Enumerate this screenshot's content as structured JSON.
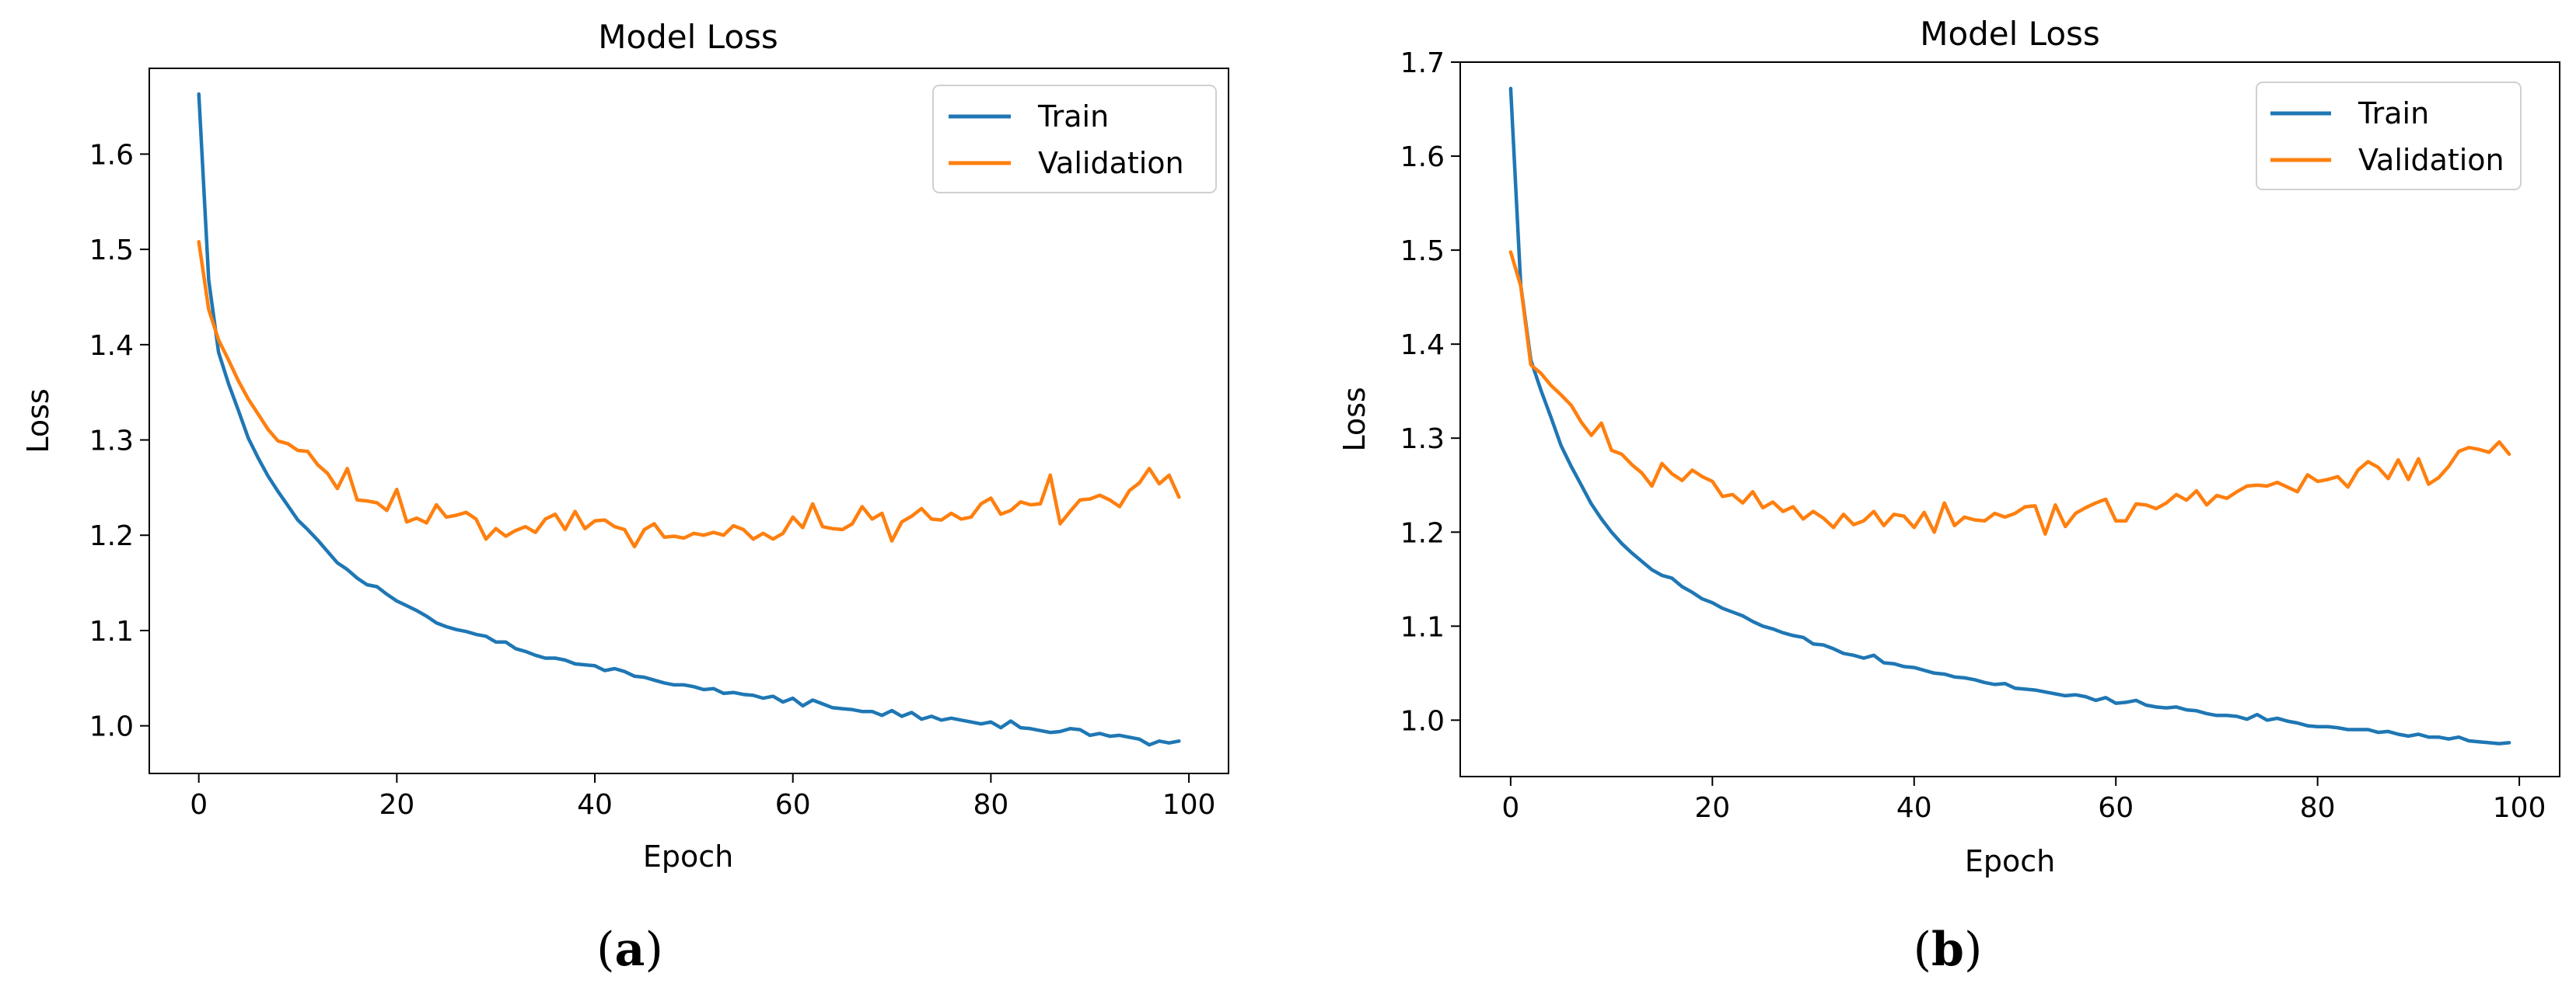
{
  "chart_data": [
    {
      "type": "line",
      "panel_label": "a",
      "caption_open": "(",
      "caption_close": ")",
      "title": "Model Loss",
      "xlabel": "Epoch",
      "ylabel": "Loss",
      "xlim": [
        -5,
        104
      ],
      "ylim": [
        0.95,
        1.69
      ],
      "xticks": [
        0,
        20,
        40,
        60,
        80,
        100
      ],
      "yticks": [
        1.0,
        1.1,
        1.2,
        1.3,
        1.4,
        1.5,
        1.6
      ],
      "legend_loc": "upper right",
      "series": [
        {
          "name": "Train",
          "color": "#1f77b4",
          "values": [
            1.663,
            1.468,
            1.392,
            1.359,
            1.331,
            1.302,
            1.281,
            1.262,
            1.246,
            1.231,
            1.216,
            1.206,
            1.195,
            1.183,
            1.171,
            1.164,
            1.155,
            1.148,
            1.146,
            1.138,
            1.131,
            1.126,
            1.121,
            1.115,
            1.108,
            1.104,
            1.101,
            1.099,
            1.096,
            1.094,
            1.088,
            1.088,
            1.081,
            1.078,
            1.074,
            1.071,
            1.071,
            1.069,
            1.065,
            1.064,
            1.063,
            1.058,
            1.06,
            1.057,
            1.052,
            1.051,
            1.048,
            1.045,
            1.043,
            1.043,
            1.041,
            1.038,
            1.039,
            1.034,
            1.035,
            1.033,
            1.032,
            1.029,
            1.031,
            1.025,
            1.029,
            1.021,
            1.027,
            1.023,
            1.019,
            1.018,
            1.017,
            1.015,
            1.015,
            1.011,
            1.016,
            1.01,
            1.014,
            1.007,
            1.01,
            1.006,
            1.008,
            1.006,
            1.004,
            1.002,
            1.004,
            0.998,
            1.005,
            0.998,
            0.997,
            0.995,
            0.993,
            0.994,
            0.997,
            0.996,
            0.99,
            0.992,
            0.989,
            0.99,
            0.988,
            0.986,
            0.98,
            0.984,
            0.982,
            0.984
          ]
        },
        {
          "name": "Validation",
          "color": "#ff7f0e",
          "values": [
            1.508,
            1.437,
            1.405,
            1.384,
            1.362,
            1.343,
            1.327,
            1.311,
            1.299,
            1.296,
            1.289,
            1.288,
            1.274,
            1.265,
            1.249,
            1.27,
            1.237,
            1.236,
            1.234,
            1.226,
            1.248,
            1.214,
            1.218,
            1.213,
            1.232,
            1.219,
            1.221,
            1.224,
            1.217,
            1.196,
            1.207,
            1.199,
            1.205,
            1.209,
            1.203,
            1.217,
            1.222,
            1.206,
            1.225,
            1.207,
            1.215,
            1.216,
            1.209,
            1.206,
            1.188,
            1.206,
            1.212,
            1.198,
            1.199,
            1.197,
            1.202,
            1.2,
            1.203,
            1.2,
            1.21,
            1.206,
            1.196,
            1.202,
            1.196,
            1.202,
            1.219,
            1.208,
            1.233,
            1.209,
            1.207,
            1.206,
            1.212,
            1.23,
            1.217,
            1.223,
            1.194,
            1.214,
            1.22,
            1.228,
            1.217,
            1.216,
            1.223,
            1.217,
            1.219,
            1.233,
            1.239,
            1.222,
            1.226,
            1.235,
            1.232,
            1.233,
            1.263,
            1.212,
            1.225,
            1.237,
            1.238,
            1.242,
            1.237,
            1.23,
            1.247,
            1.255,
            1.27,
            1.254,
            1.263,
            1.24
          ]
        }
      ]
    },
    {
      "type": "line",
      "panel_label": "b",
      "caption_open": "(",
      "caption_close": ")",
      "title": "Model Loss",
      "xlabel": "Epoch",
      "ylabel": "Loss",
      "xlim": [
        -5,
        104
      ],
      "ylim": [
        0.94,
        1.7
      ],
      "xticks": [
        0,
        20,
        40,
        60,
        80,
        100
      ],
      "yticks": [
        1.0,
        1.1,
        1.2,
        1.3,
        1.4,
        1.5,
        1.6,
        1.7
      ],
      "legend_loc": "upper right",
      "series": [
        {
          "name": "Train",
          "color": "#1f77b4",
          "values": [
            1.672,
            1.463,
            1.383,
            1.351,
            1.322,
            1.292,
            1.27,
            1.25,
            1.23,
            1.214,
            1.2,
            1.188,
            1.178,
            1.169,
            1.16,
            1.154,
            1.151,
            1.142,
            1.136,
            1.129,
            1.125,
            1.119,
            1.115,
            1.111,
            1.105,
            1.1,
            1.097,
            1.093,
            1.09,
            1.088,
            1.081,
            1.08,
            1.076,
            1.071,
            1.069,
            1.066,
            1.069,
            1.061,
            1.06,
            1.057,
            1.056,
            1.053,
            1.05,
            1.049,
            1.046,
            1.045,
            1.043,
            1.04,
            1.038,
            1.039,
            1.034,
            1.033,
            1.032,
            1.03,
            1.028,
            1.026,
            1.027,
            1.025,
            1.021,
            1.024,
            1.018,
            1.019,
            1.021,
            1.016,
            1.014,
            1.013,
            1.014,
            1.011,
            1.01,
            1.007,
            1.005,
            1.005,
            1.004,
            1.001,
            1.006,
            1.0,
            1.002,
            0.999,
            0.997,
            0.994,
            0.993,
            0.993,
            0.992,
            0.99,
            0.99,
            0.99,
            0.987,
            0.988,
            0.985,
            0.983,
            0.985,
            0.982,
            0.982,
            0.98,
            0.982,
            0.978,
            0.977,
            0.976,
            0.975,
            0.976
          ]
        },
        {
          "name": "Validation",
          "color": "#ff7f0e",
          "values": [
            1.498,
            1.462,
            1.378,
            1.369,
            1.356,
            1.346,
            1.335,
            1.317,
            1.303,
            1.316,
            1.287,
            1.283,
            1.272,
            1.263,
            1.249,
            1.273,
            1.262,
            1.255,
            1.266,
            1.259,
            1.254,
            1.238,
            1.24,
            1.231,
            1.243,
            1.226,
            1.232,
            1.222,
            1.227,
            1.214,
            1.222,
            1.215,
            1.205,
            1.219,
            1.208,
            1.212,
            1.222,
            1.207,
            1.219,
            1.217,
            1.205,
            1.221,
            1.2,
            1.231,
            1.207,
            1.216,
            1.213,
            1.212,
            1.22,
            1.216,
            1.22,
            1.227,
            1.228,
            1.198,
            1.229,
            1.206,
            1.22,
            1.226,
            1.231,
            1.235,
            1.212,
            1.212,
            1.23,
            1.229,
            1.225,
            1.231,
            1.24,
            1.234,
            1.244,
            1.229,
            1.239,
            1.236,
            1.243,
            1.249,
            1.25,
            1.249,
            1.253,
            1.248,
            1.243,
            1.261,
            1.254,
            1.256,
            1.259,
            1.248,
            1.266,
            1.275,
            1.269,
            1.257,
            1.277,
            1.256,
            1.278,
            1.251,
            1.258,
            1.27,
            1.286,
            1.29,
            1.288,
            1.285,
            1.296,
            1.283
          ]
        }
      ]
    }
  ]
}
